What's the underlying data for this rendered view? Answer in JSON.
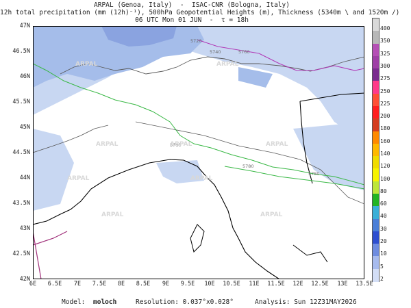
{
  "header": {
    "line1": "ARPAL (Genoa, Italy)  -  ISAC-CNR (Bologna, Italy)",
    "line2": "12h total precipitation (mm (12h)⁻¹), 500hPa Geopotential Heights (m), Thickness (5340m \\ and 1520m /)",
    "line3": "06 UTC Mon 01 JUN  -  τ = 18h"
  },
  "map": {
    "lat_labels": [
      "47N",
      "46.5N",
      "46N",
      "45.5N",
      "45N",
      "44.5N",
      "44N",
      "43.5N",
      "43N",
      "42.5N",
      "42N"
    ],
    "lon_labels": [
      "6E",
      "6.5E",
      "7E",
      "7.5E",
      "8E",
      "8.5E",
      "9E",
      "9.5E",
      "10E",
      "10.5E",
      "11E",
      "11.5E",
      "12E",
      "12.5E",
      "13E",
      "13.5E"
    ],
    "contour_labels": [
      "5720",
      "5740",
      "5760",
      "5760",
      "5780",
      "5780"
    ],
    "watermark": "ARPAL",
    "colors": {
      "precip_light": "#c8d7f2",
      "precip_mid": "#a5bdea",
      "precip_dark": "#8aa3e0",
      "height_contour": "#39b845",
      "thickness_contour": "#b13bb7",
      "coast": "#000000",
      "border": "#5a5a5a"
    }
  },
  "colorbar": {
    "labels": [
      "400",
      "350",
      "325",
      "300",
      "275",
      "250",
      "225",
      "200",
      "180",
      "160",
      "140",
      "120",
      "100",
      "80",
      "60",
      "40",
      "30",
      "20",
      "10",
      "5",
      "2"
    ],
    "colors": [
      "#d9d9d9",
      "#b7b7b7",
      "#b54fb5",
      "#9f3fa6",
      "#7b2c8f",
      "#ff3a8a",
      "#ff4f35",
      "#ff1e1e",
      "#d43d1f",
      "#ff8a00",
      "#ffb900",
      "#f0dc00",
      "#f7f400",
      "#bde63a",
      "#23b423",
      "#3bb0d8",
      "#4a7fd8",
      "#2e4fd0",
      "#6e8ce0",
      "#a7bbee",
      "#d3def6"
    ]
  },
  "footer": {
    "model_label": "Model:",
    "model_value": "moloch",
    "resolution": "Resolution: 0.037°x0.028°",
    "analysis": "Analysis: Sun 12Z31MAY2026"
  }
}
